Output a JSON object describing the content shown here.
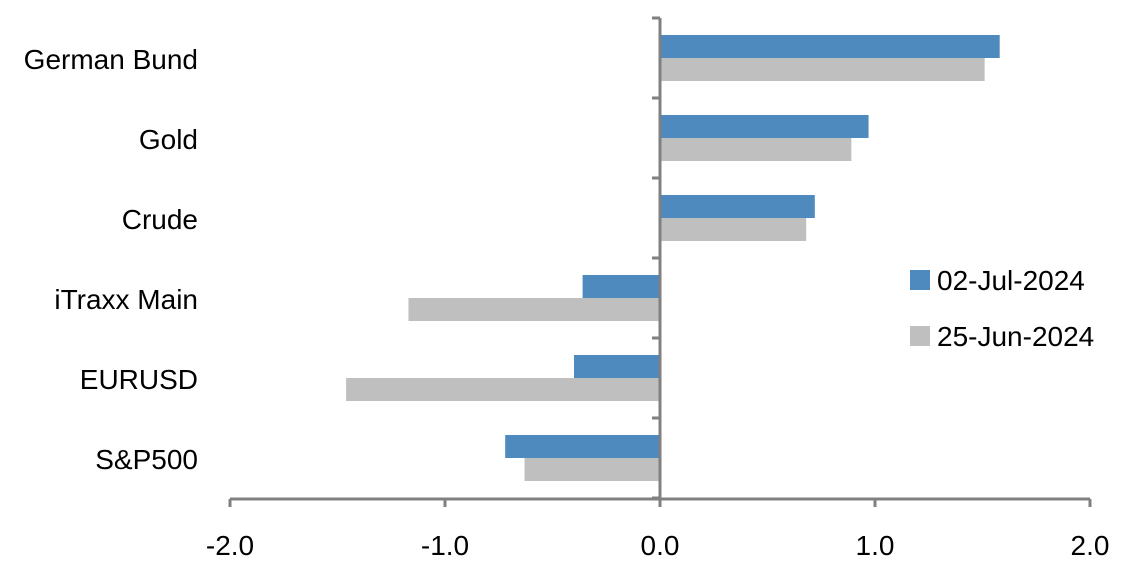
{
  "chart_data": {
    "type": "bar",
    "orientation": "horizontal",
    "categories": [
      "German Bund",
      "Gold",
      "Crude",
      "iTraxx Main",
      "EURUSD",
      "S&P500"
    ],
    "series": [
      {
        "name": "02-Jul-2024",
        "color": "#4e8abe",
        "values": [
          1.58,
          0.97,
          0.72,
          -0.36,
          -0.4,
          -0.72
        ]
      },
      {
        "name": "25-Jun-2024",
        "color": "#bfbfbf",
        "values": [
          1.51,
          0.89,
          0.68,
          -1.17,
          -1.46,
          -0.63
        ]
      }
    ],
    "xlim": [
      -2.0,
      2.0
    ],
    "xticks": [
      "-2.0",
      "-1.0",
      "0.0",
      "1.0",
      "2.0"
    ],
    "grid": false,
    "legend": "right",
    "axis_color": "#808080"
  }
}
